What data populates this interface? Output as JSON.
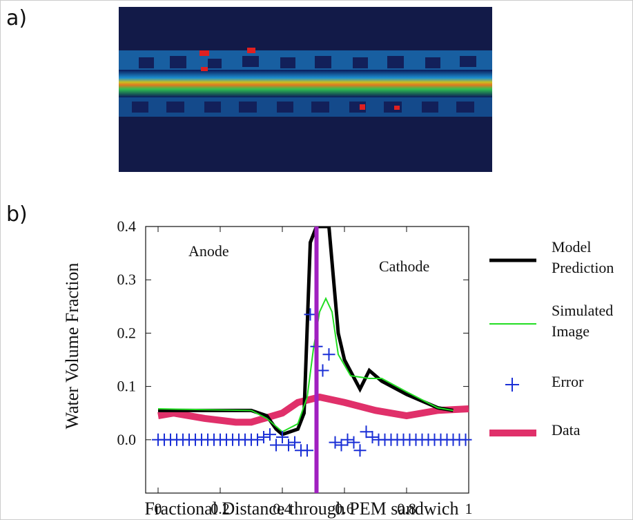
{
  "panel_labels": [
    "a)",
    "b)"
  ],
  "chart_data": {
    "type": "line",
    "xlabel": "Fractional Distance through PEM sandwich",
    "ylabel": "Water Volume Fraction",
    "annotations": [
      "Anode",
      "Cathode"
    ],
    "xlim": [
      -0.04,
      1.0
    ],
    "ylim": [
      -0.1,
      0.4
    ],
    "xticks": [
      0,
      0.2,
      0.4,
      0.6,
      0.8,
      1
    ],
    "yticks": [
      {
        "value": 0,
        "label": "0.0"
      },
      0.1,
      0.2,
      0.3,
      0.4
    ],
    "marker_line": {
      "x": 0.51,
      "color": "#a020c0"
    },
    "series": [
      {
        "name": "Model Prediction",
        "color": "#000000",
        "marker": "line",
        "x": [
          0,
          0.3,
          0.35,
          0.38,
          0.4,
          0.45,
          0.47,
          0.49,
          0.51,
          0.55,
          0.58,
          0.6,
          0.65,
          0.68,
          0.72,
          0.8,
          0.9,
          0.95
        ],
        "values": [
          0.055,
          0.055,
          0.045,
          0.02,
          0.01,
          0.02,
          0.05,
          0.37,
          0.4,
          0.4,
          0.2,
          0.15,
          0.095,
          0.13,
          0.11,
          0.085,
          0.06,
          0.055
        ]
      },
      {
        "name": "Simulated Image",
        "color": "#22dd22",
        "marker": "line",
        "x": [
          0,
          0.3,
          0.35,
          0.4,
          0.45,
          0.48,
          0.5,
          0.52,
          0.54,
          0.56,
          0.58,
          0.62,
          0.68,
          0.72,
          0.8,
          0.9,
          0.95
        ],
        "values": [
          0.058,
          0.055,
          0.04,
          0.015,
          0.03,
          0.08,
          0.17,
          0.24,
          0.265,
          0.24,
          0.16,
          0.12,
          0.115,
          0.115,
          0.09,
          0.06,
          0.055
        ]
      },
      {
        "name": "Error",
        "color": "#1a2fd6",
        "marker": "plus",
        "x": [
          0,
          0.02,
          0.04,
          0.06,
          0.08,
          0.1,
          0.12,
          0.14,
          0.16,
          0.18,
          0.2,
          0.22,
          0.24,
          0.26,
          0.28,
          0.3,
          0.32,
          0.34,
          0.36,
          0.38,
          0.4,
          0.42,
          0.44,
          0.46,
          0.48,
          0.49,
          0.51,
          0.53,
          0.55,
          0.57,
          0.59,
          0.61,
          0.63,
          0.65,
          0.67,
          0.69,
          0.71,
          0.73,
          0.75,
          0.77,
          0.79,
          0.81,
          0.83,
          0.85,
          0.87,
          0.89,
          0.91,
          0.93,
          0.95,
          0.97,
          0.99
        ],
        "values": [
          0,
          0,
          0,
          0,
          0,
          0,
          0,
          0,
          0,
          0,
          0,
          0,
          0,
          0,
          0,
          0,
          0,
          0.005,
          0.01,
          -0.01,
          0.005,
          -0.01,
          -0.005,
          -0.02,
          -0.02,
          0.235,
          0.175,
          0.13,
          0.16,
          -0.005,
          -0.01,
          0,
          -0.005,
          -0.02,
          0.015,
          0.005,
          0,
          0,
          0,
          0,
          0,
          0,
          0,
          0,
          0,
          0,
          0,
          0,
          0,
          0,
          0
        ]
      },
      {
        "name": "Data",
        "color": "#e0306a",
        "marker": "line",
        "x": [
          0,
          0.05,
          0.15,
          0.25,
          0.3,
          0.4,
          0.45,
          0.52,
          0.6,
          0.7,
          0.8,
          0.9,
          1.0
        ],
        "values": [
          0.045,
          0.05,
          0.04,
          0.033,
          0.033,
          0.05,
          0.07,
          0.08,
          0.07,
          0.055,
          0.045,
          0.055,
          0.058
        ]
      }
    ]
  }
}
